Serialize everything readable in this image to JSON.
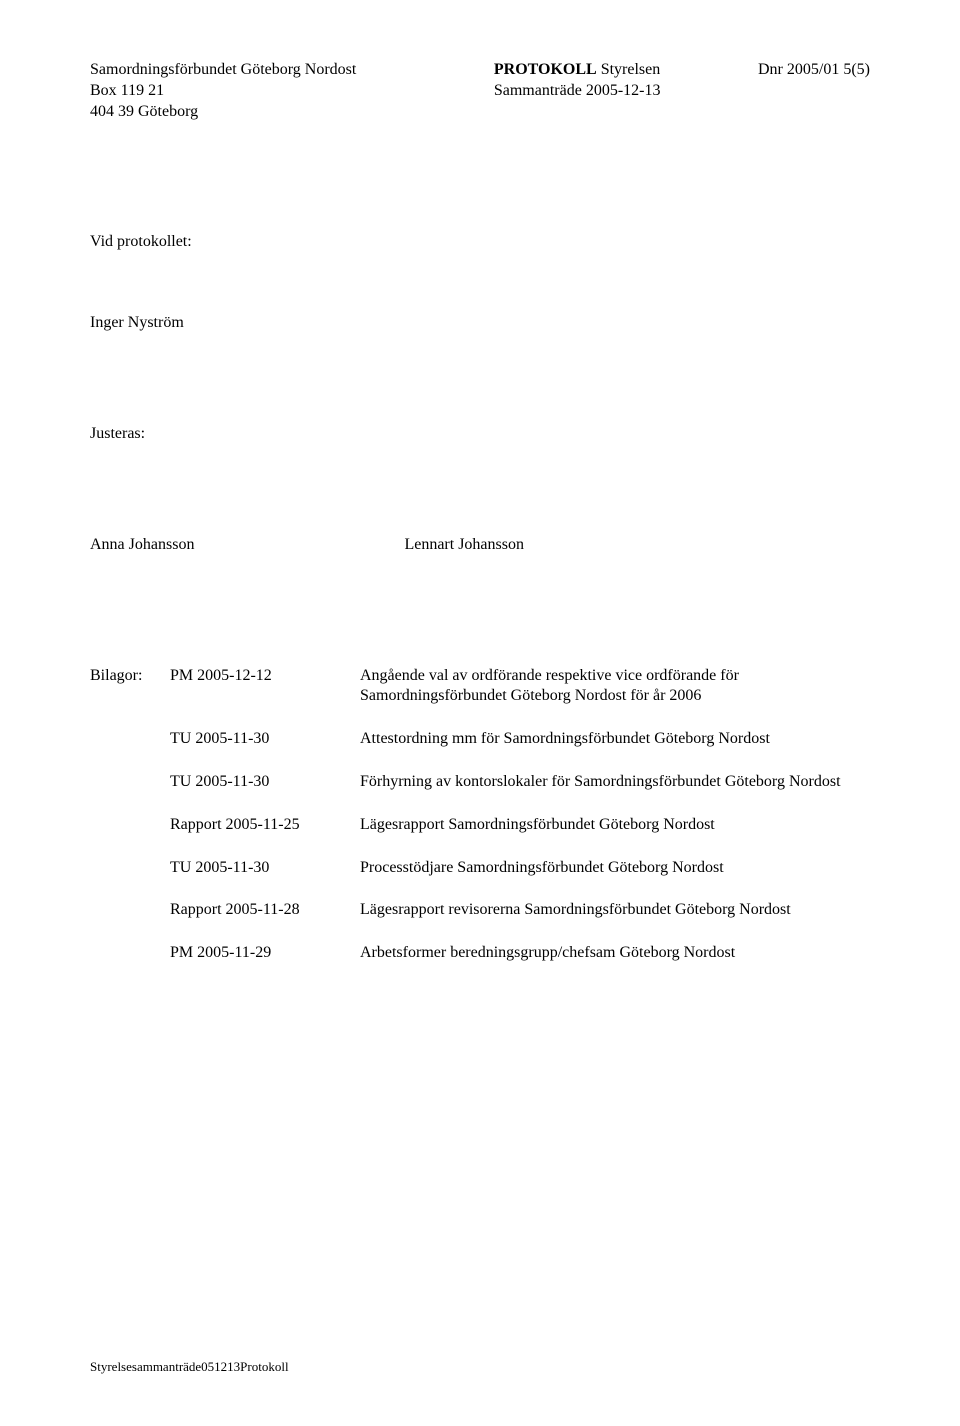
{
  "header": {
    "org_line1": "Samordningsförbundet Göteborg Nordost",
    "org_line2": "Box 119 21",
    "org_line3": "404 39 Göteborg",
    "mid_line1_bold": "PROTOKOLL",
    "mid_line1_rest": " Styrelsen",
    "mid_line2": "Sammanträde 2005-12-13",
    "right_line1": "Dnr 2005/01  5(5)"
  },
  "protocol": {
    "vid_label": "Vid protokollet:",
    "recorder": "Inger Nyström",
    "justeras_label": "Justeras:",
    "signer_left": "Anna Johansson",
    "signer_right": "Lennart Johansson"
  },
  "bilagor": {
    "label": "Bilagor:",
    "items": [
      {
        "ref": "PM 2005-12-12",
        "desc": "Angående val av ordförande respektive vice ordförande för Samordningsförbundet Göteborg Nordost för år 2006"
      },
      {
        "ref": "TU 2005-11-30",
        "desc": "Attestordning mm för Samordningsförbundet Göteborg Nordost"
      },
      {
        "ref": "TU 2005-11-30",
        "desc": "Förhyrning av kontorslokaler för Samordningsförbundet Göteborg Nordost"
      },
      {
        "ref": "Rapport 2005-11-25",
        "desc": "Lägesrapport Samordningsförbundet Göteborg Nordost"
      },
      {
        "ref": "TU 2005-11-30",
        "desc": "Processtödjare Samordningsförbundet Göteborg Nordost"
      },
      {
        "ref": "Rapport 2005-11-28",
        "desc": "Lägesrapport revisorerna Samordningsförbundet Göteborg Nordost"
      },
      {
        "ref": "PM 2005-11-29",
        "desc": "Arbetsformer beredningsgrupp/chefsam Göteborg Nordost"
      }
    ]
  },
  "footer": {
    "text": "Styrelsesammanträde051213Protokoll"
  }
}
